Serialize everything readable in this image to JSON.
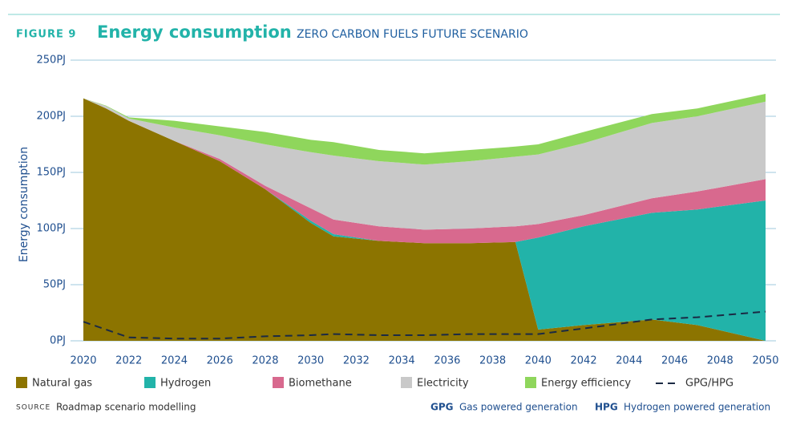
{
  "chart_data": {
    "type": "stacked_area",
    "figure_label": "FIGURE 9",
    "title": "Energy consumption",
    "subtitle": "ZERO CARBON FUELS FUTURE SCENARIO",
    "y_label": "Energy consumption",
    "x": [
      2020,
      2021,
      2022,
      2024,
      2026,
      2028,
      2030,
      2031,
      2033,
      2035,
      2037,
      2039,
      2040,
      2042,
      2045,
      2047,
      2050
    ],
    "series": [
      {
        "name": "Natural gas",
        "color": "#8c7400",
        "values": [
          216,
          207,
          196,
          178,
          160,
          135,
          105,
          93,
          89,
          87,
          87,
          88,
          10,
          14,
          19,
          14,
          0
        ]
      },
      {
        "name": "Hydrogen",
        "color": "#22b3a9",
        "values": [
          0,
          0,
          0,
          0,
          0,
          0,
          2,
          2,
          0,
          0,
          0,
          0,
          82,
          88,
          95,
          103,
          125
        ]
      },
      {
        "name": "Biomethane",
        "color": "#d8698e",
        "values": [
          0,
          0,
          0,
          0,
          2,
          3,
          11,
          13,
          13,
          12,
          13,
          14,
          12,
          10,
          13,
          16,
          19
        ]
      },
      {
        "name": "Electricity",
        "color": "#c9c9c9",
        "values": [
          0,
          2,
          2,
          12,
          21,
          37,
          50,
          57,
          58,
          58,
          60,
          62,
          62,
          64,
          67,
          67,
          69
        ]
      },
      {
        "name": "Energy efficiency",
        "color": "#8fd65c",
        "values": [
          0,
          0.5,
          1,
          6,
          8,
          11,
          11,
          12,
          10,
          10,
          10,
          9,
          9,
          10,
          8,
          7,
          7
        ]
      }
    ],
    "lines": [
      {
        "name": "GPG/HPG",
        "color": "#1b2a44",
        "dashed": true,
        "values": [
          17,
          10,
          3,
          2,
          2,
          4,
          5,
          6,
          5,
          5,
          6,
          6,
          6,
          11,
          19,
          21,
          26
        ]
      }
    ],
    "xlim": [
      2020,
      2050
    ],
    "xticks": [
      2020,
      2022,
      2024,
      2026,
      2028,
      2030,
      2032,
      2034,
      2036,
      2038,
      2040,
      2042,
      2044,
      2046,
      2048,
      2050
    ],
    "ylim": [
      0,
      250
    ],
    "yticks": [
      {
        "value": 0,
        "label": "0PJ"
      },
      {
        "value": 50,
        "label": "50PJ"
      },
      {
        "value": 100,
        "label": "100PJ"
      },
      {
        "value": 150,
        "label": "150PJ"
      },
      {
        "value": 200,
        "label": "200PJ"
      },
      {
        "value": 250,
        "label": "250PJ"
      }
    ],
    "grid": true,
    "source_label": "SOURCE",
    "source": "Roadmap scenario modelling",
    "notes": [
      {
        "abbr": "GPG",
        "text": "Gas powered generation"
      },
      {
        "abbr": "HPG",
        "text": "Hydrogen powered generation"
      }
    ]
  }
}
